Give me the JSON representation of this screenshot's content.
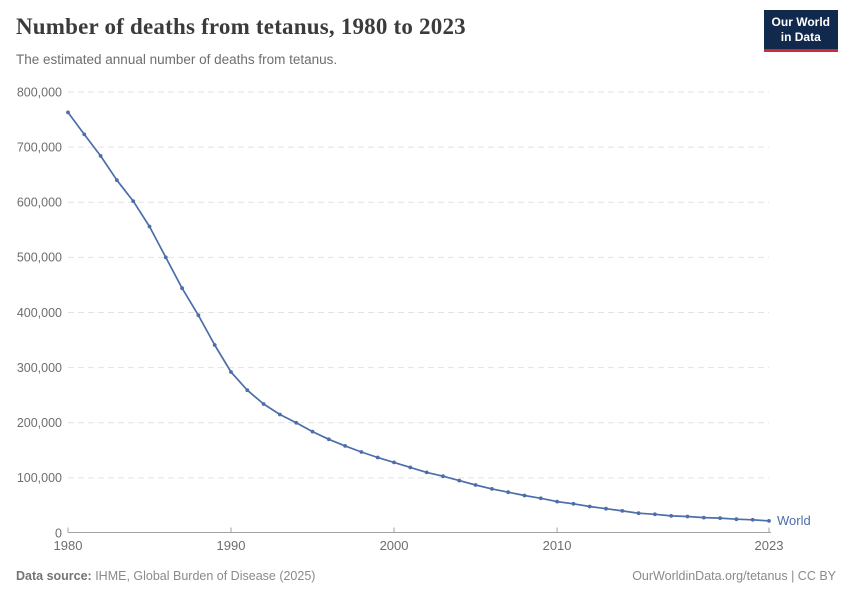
{
  "header": {
    "title": "Number of deaths from tetanus, 1980 to 2023",
    "subtitle": "The estimated annual number of deaths from tetanus."
  },
  "logo": {
    "line1": "Our World",
    "line2": "in Data",
    "bg_color": "#12294e",
    "accent_color": "#c62d35"
  },
  "chart_data": {
    "type": "line",
    "title": "Number of deaths from tetanus, 1980 to 2023",
    "subtitle": "The estimated annual number of deaths from tetanus.",
    "x": [
      1980,
      1981,
      1982,
      1983,
      1984,
      1985,
      1986,
      1987,
      1988,
      1989,
      1990,
      1991,
      1992,
      1993,
      1994,
      1995,
      1996,
      1997,
      1998,
      1999,
      2000,
      2001,
      2002,
      2003,
      2004,
      2005,
      2006,
      2007,
      2008,
      2009,
      2010,
      2011,
      2012,
      2013,
      2014,
      2015,
      2016,
      2017,
      2018,
      2019,
      2020,
      2021,
      2022,
      2023
    ],
    "series": [
      {
        "name": "World",
        "values": [
          763000,
          723000,
          684000,
          640000,
          602000,
          556000,
          500000,
          444000,
          395000,
          341000,
          292000,
          259000,
          234000,
          215000,
          200000,
          184000,
          170000,
          158000,
          147000,
          137000,
          128000,
          119000,
          110000,
          103000,
          95000,
          87000,
          80000,
          74000,
          68000,
          63000,
          57000,
          53000,
          48000,
          44000,
          40000,
          36000,
          34000,
          31000,
          30000,
          28000,
          27000,
          25000,
          24000,
          22000
        ]
      }
    ],
    "xlabel": "",
    "ylabel": "",
    "xticks": [
      1980,
      1990,
      2000,
      2010,
      2023
    ],
    "yticks": [
      0,
      100000,
      200000,
      300000,
      400000,
      500000,
      600000,
      700000,
      800000
    ],
    "ylim": [
      0,
      800000
    ],
    "xlim": [
      1980,
      2023
    ],
    "grid": "horizontal-dashed",
    "legend": "end-of-line-label",
    "markers": true
  },
  "footer": {
    "source_label": "Data source:",
    "source_value": " IHME, Global Burden of Disease (2025)",
    "credit": "OurWorldinData.org/tetanus | CC BY"
  },
  "colors": {
    "line": "#4c6ea9",
    "grid": "#e3e3e3",
    "axis": "#a3a3a3",
    "tick_text": "#6e6e6e",
    "series_label": "#4c6ea9"
  }
}
